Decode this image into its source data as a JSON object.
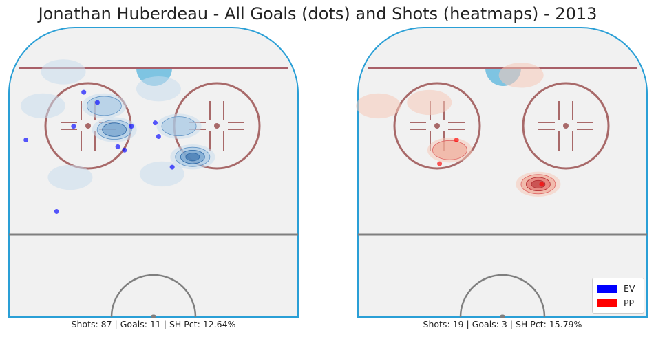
{
  "title": "Jonathan Huberdeau - All Goals (dots) and Shots (heatmaps) - 2013",
  "colors": {
    "ice": "#f1f1f1",
    "boards": "#2a9fd6",
    "goal_line": "#a85f68",
    "center_line": "#7f7f7f",
    "crease": "#7ec4e2",
    "faceoff": "#a86969",
    "ev": "#0000ff",
    "pp": "#ff0000"
  },
  "legend": [
    {
      "label": "EV",
      "color": "#0000ff"
    },
    {
      "label": "PP",
      "color": "#ff0000"
    }
  ],
  "chart_data": [
    {
      "type": "scatter",
      "series": [
        {
          "name": "EV",
          "color": "#0000ff"
        }
      ],
      "caption": "Shots: 87 | Goals: 11 | SH Pct: 12.64%",
      "summary": {
        "shots": 87,
        "goals": 11,
        "sh_pct": 12.64
      },
      "goals": [
        {
          "x": 2.5,
          "y": 16.5
        },
        {
          "x": 11,
          "y": 9.5
        },
        {
          "x": 13,
          "y": 11
        },
        {
          "x": 16,
          "y": 17.5
        },
        {
          "x": 17,
          "y": 18
        },
        {
          "x": 9.5,
          "y": 14.5
        },
        {
          "x": 7,
          "y": 27
        },
        {
          "x": 18,
          "y": 14.5
        },
        {
          "x": 21.5,
          "y": 14
        },
        {
          "x": 22,
          "y": 16
        },
        {
          "x": 24,
          "y": 20.5
        }
      ],
      "heatmap_spots": [
        {
          "x": 15.5,
          "y": 15,
          "weight": 3
        },
        {
          "x": 27,
          "y": 19,
          "weight": 4
        },
        {
          "x": 25,
          "y": 14.5,
          "weight": 2
        },
        {
          "x": 5,
          "y": 11.5,
          "weight": 1
        },
        {
          "x": 8,
          "y": 6.5,
          "weight": 1
        },
        {
          "x": 14,
          "y": 11.5,
          "weight": 2
        },
        {
          "x": 22,
          "y": 9,
          "weight": 1
        },
        {
          "x": 9,
          "y": 22,
          "weight": 1
        },
        {
          "x": 22.5,
          "y": 21.5,
          "weight": 1
        }
      ]
    },
    {
      "type": "scatter",
      "series": [
        {
          "name": "PP",
          "color": "#ff0000"
        }
      ],
      "caption": "Shots: 19 | Goals: 3 | SH Pct: 15.79%",
      "summary": {
        "shots": 19,
        "goals": 3,
        "sh_pct": 15.79
      },
      "goals": [
        {
          "x": 27,
          "y": 23
        },
        {
          "x": 12,
          "y": 20
        },
        {
          "x": 14.5,
          "y": 16.5
        }
      ],
      "heatmap_spots": [
        {
          "x": 26.5,
          "y": 23,
          "weight": 4
        },
        {
          "x": 13.5,
          "y": 18,
          "weight": 2
        },
        {
          "x": 10.5,
          "y": 11,
          "weight": 1
        },
        {
          "x": 24,
          "y": 7,
          "weight": 1
        },
        {
          "x": 3,
          "y": 11.5,
          "weight": 1
        }
      ]
    }
  ]
}
